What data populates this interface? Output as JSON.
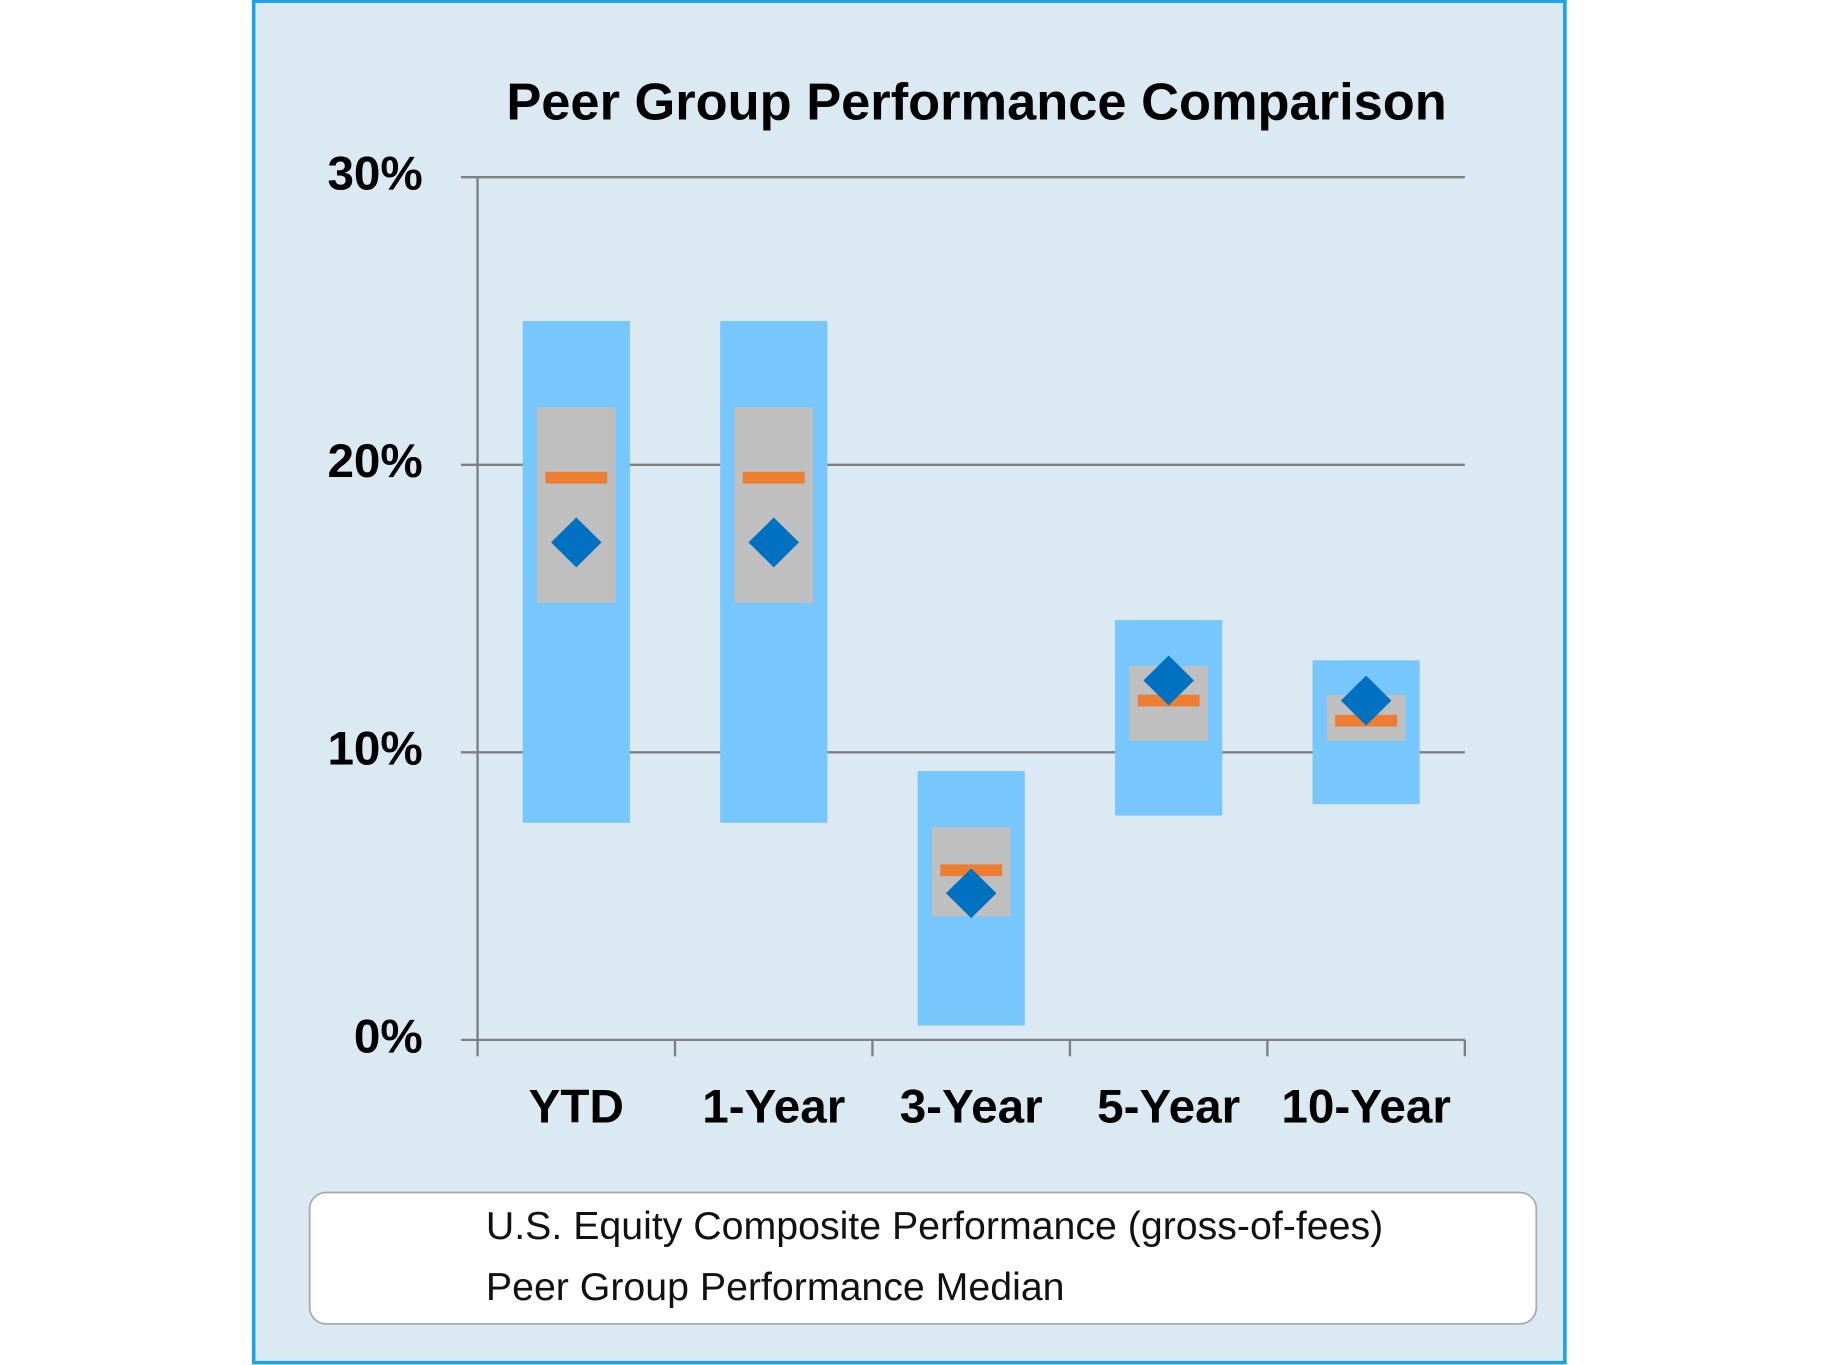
{
  "chart_data": {
    "type": "floating-range",
    "title": "Peer Group Performance Comparison",
    "categories": [
      "YTD",
      "1-Year",
      "3-Year",
      "5-Year",
      "10-Year"
    ],
    "outer_range": {
      "color": "#77c6fc",
      "low": [
        7.55,
        7.55,
        0.5,
        7.8,
        8.2
      ],
      "high": [
        25.0,
        25.0,
        9.35,
        14.6,
        13.2
      ]
    },
    "inner_range": {
      "color": "#bfbfbf",
      "low": [
        15.2,
        15.2,
        4.3,
        10.4,
        10.4
      ],
      "high": [
        22.0,
        22.0,
        7.4,
        13.0,
        12.0
      ]
    },
    "series": [
      {
        "name": "U.S. Equity Composite Performance (gross-of-fees)",
        "color": "#0070c0",
        "marker": "diamond",
        "values": [
          17.3,
          17.3,
          5.1,
          12.5,
          11.8
        ]
      },
      {
        "name": "Peer Group Performance Median",
        "color": "#ed7d31",
        "marker": "dash",
        "values": [
          19.55,
          19.55,
          5.9,
          11.8,
          11.1
        ]
      }
    ],
    "ylim": [
      0,
      30
    ],
    "yticks": [
      {
        "value": 0,
        "label": "0%"
      },
      {
        "value": 10,
        "label": "10%"
      },
      {
        "value": 20,
        "label": "20%"
      },
      {
        "value": 30,
        "label": "30%"
      }
    ],
    "grid": true,
    "legend": "bottom"
  }
}
